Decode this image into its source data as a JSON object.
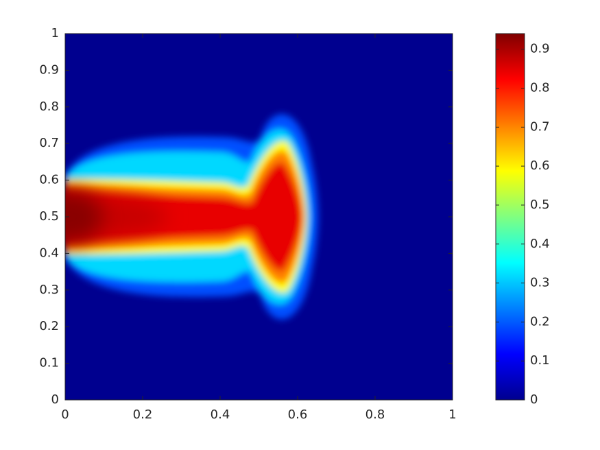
{
  "chart_data": {
    "type": "heatmap",
    "xlim": [
      0,
      1
    ],
    "ylim": [
      0,
      1
    ],
    "xticks": [
      0,
      0.2,
      0.4,
      0.6,
      0.8,
      1
    ],
    "yticks": [
      0,
      0.1,
      0.2,
      0.3,
      0.4,
      0.5,
      0.6,
      0.7,
      0.8,
      0.9,
      1
    ],
    "colorbar": {
      "clim": [
        0,
        0.94
      ],
      "ticks": [
        0,
        0.1,
        0.2,
        0.3,
        0.4,
        0.5,
        0.6,
        0.7,
        0.8,
        0.9
      ],
      "colormap": [
        "#00008f",
        "#0000ff",
        "#0080ff",
        "#00ffff",
        "#80ff80",
        "#ffff00",
        "#ff8000",
        "#ff0000",
        "#800000"
      ]
    }
  }
}
